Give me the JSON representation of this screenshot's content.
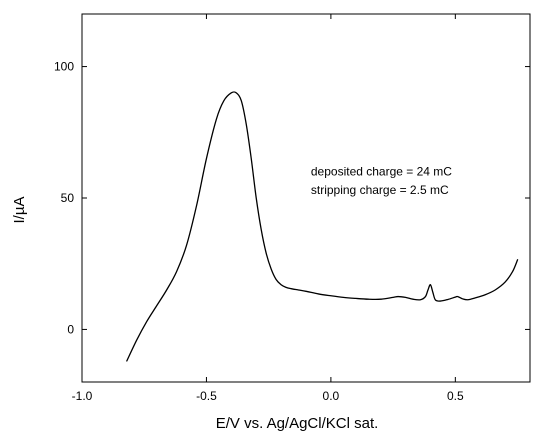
{
  "chart_data": {
    "type": "line",
    "title": "",
    "xlabel": "E/V vs. Ag/AgCl/KCl sat.",
    "ylabel": "I/µA",
    "xlim": [
      -1.0,
      0.8
    ],
    "ylim": [
      -20,
      120
    ],
    "xticks": [
      {
        "value": -1.0,
        "label": "-1.0"
      },
      {
        "value": -0.5,
        "label": "-0.5"
      },
      {
        "value": 0.0,
        "label": "0.0"
      },
      {
        "value": 0.5,
        "label": "0.5"
      }
    ],
    "yticks": [
      {
        "value": 0,
        "label": "0"
      },
      {
        "value": 50,
        "label": "50"
      },
      {
        "value": 100,
        "label": "100"
      }
    ],
    "grid": false,
    "annotations": [
      {
        "text": "deposited charge = 24 mC",
        "x": 0.0,
        "y": 60
      },
      {
        "text": "stripping charge   = 2.5 mC",
        "x": 0.0,
        "y": 53
      }
    ],
    "series": [
      {
        "color": "#000000",
        "x": [
          -0.82,
          -0.78,
          -0.74,
          -0.7,
          -0.66,
          -0.62,
          -0.58,
          -0.54,
          -0.5,
          -0.46,
          -0.43,
          -0.4,
          -0.38,
          -0.36,
          -0.34,
          -0.32,
          -0.3,
          -0.28,
          -0.26,
          -0.24,
          -0.22,
          -0.2,
          -0.18,
          -0.16,
          -0.13,
          -0.1,
          -0.05,
          0.0,
          0.05,
          0.1,
          0.15,
          0.2,
          0.25,
          0.27,
          0.3,
          0.33,
          0.36,
          0.38,
          0.39,
          0.4,
          0.41,
          0.42,
          0.44,
          0.47,
          0.5,
          0.51,
          0.53,
          0.55,
          0.58,
          0.62,
          0.66,
          0.7,
          0.73,
          0.75
        ],
        "y": [
          -12,
          -4,
          3,
          9,
          15,
          22,
          32,
          47,
          65,
          80,
          87,
          90,
          90,
          87,
          78,
          65,
          50,
          38,
          29,
          23,
          19,
          17,
          16,
          15.5,
          15,
          14.5,
          13.5,
          12.8,
          12.2,
          11.8,
          11.5,
          11.5,
          12.2,
          12.5,
          12.2,
          11.5,
          11.3,
          12.5,
          15,
          17,
          14,
          11.2,
          10.8,
          11.4,
          12.3,
          12.5,
          11.6,
          11.3,
          12.0,
          13.2,
          15.0,
          18.0,
          22.0,
          26.5
        ]
      }
    ]
  }
}
